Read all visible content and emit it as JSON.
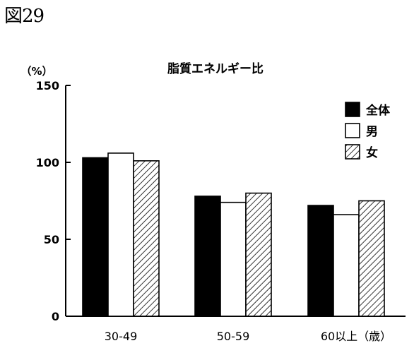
{
  "figure_label": "図29",
  "chart_data": {
    "type": "bar",
    "title": "脂質エネルギー比",
    "ylabel": "（%）",
    "xlabel": "",
    "ylim": [
      0,
      150
    ],
    "yticks": [
      "0",
      "50",
      "100",
      "150"
    ],
    "categories": [
      "30-49",
      "50-59",
      "60以上（歳）"
    ],
    "series": [
      {
        "name": "全体",
        "values": [
          103,
          78,
          72
        ],
        "fill": "solid-black"
      },
      {
        "name": "男",
        "values": [
          106,
          74,
          66
        ],
        "fill": "white"
      },
      {
        "name": "女",
        "values": [
          101,
          80,
          75
        ],
        "fill": "diagonal-hatch"
      }
    ],
    "legend_position": "top-right",
    "grid": false,
    "colors": {
      "ink": "#000000",
      "paper": "#ffffff"
    }
  }
}
